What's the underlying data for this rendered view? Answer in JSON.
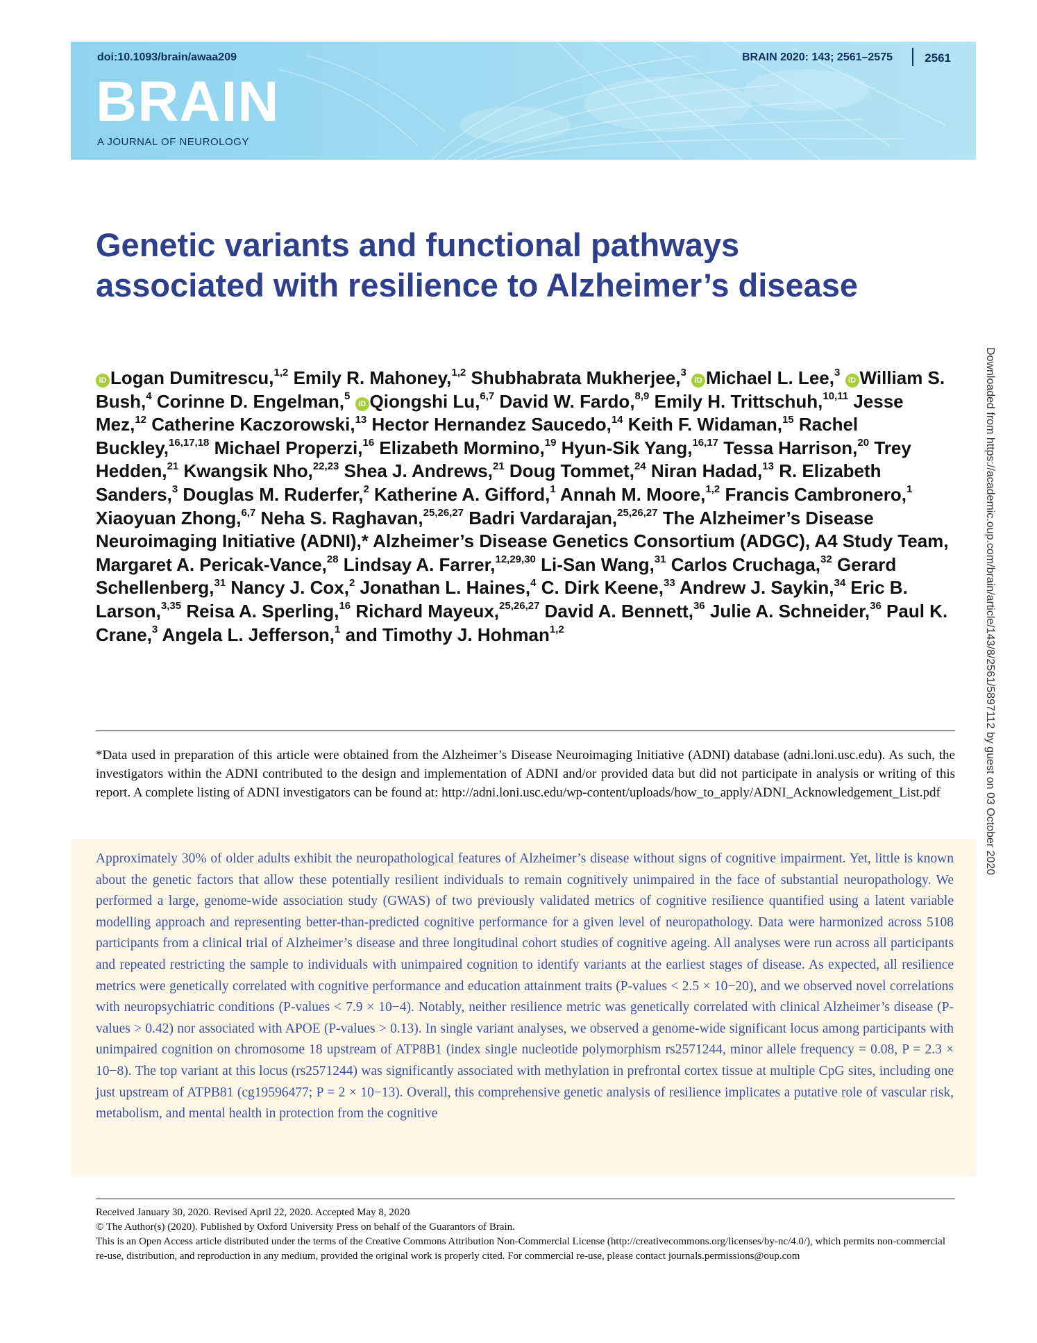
{
  "header": {
    "doi": "doi:10.1093/brain/awaa209",
    "citation": "BRAIN 2020: 143; 2561–2575",
    "page_number": "2561",
    "journal_name": "BRAIN",
    "journal_subtitle": "A JOURNAL OF NEUROLOGY",
    "banner_color": "#a2dcf2"
  },
  "title": "Genetic variants and functional pathways associated with resilience to Alzheimer’s disease",
  "authors": [
    {
      "name": "Logan Dumitrescu,",
      "aff": "1,2",
      "orcid": true
    },
    {
      "name": "Emily R. Mahoney,",
      "aff": "1,2",
      "orcid": false
    },
    {
      "name": "Shubhabrata Mukherjee,",
      "aff": "3",
      "orcid": false
    },
    {
      "name": "Michael L. Lee,",
      "aff": "3",
      "orcid": true
    },
    {
      "name": "William S. Bush,",
      "aff": "4",
      "orcid": true
    },
    {
      "name": "Corinne D. Engelman,",
      "aff": "5",
      "orcid": false
    },
    {
      "name": "Qiongshi Lu,",
      "aff": "6,7",
      "orcid": true
    },
    {
      "name": "David W. Fardo,",
      "aff": "8,9",
      "orcid": false
    },
    {
      "name": "Emily H. Trittschuh,",
      "aff": "10,11",
      "orcid": false
    },
    {
      "name": "Jesse Mez,",
      "aff": "12",
      "orcid": false
    },
    {
      "name": "Catherine Kaczorowski,",
      "aff": "13",
      "orcid": false
    },
    {
      "name": "Hector Hernandez Saucedo,",
      "aff": "14",
      "orcid": false
    },
    {
      "name": "Keith F. Widaman,",
      "aff": "15",
      "orcid": false
    },
    {
      "name": "Rachel Buckley,",
      "aff": "16,17,18",
      "orcid": false
    },
    {
      "name": "Michael Properzi,",
      "aff": "16",
      "orcid": false
    },
    {
      "name": "Elizabeth Mormino,",
      "aff": "19",
      "orcid": false
    },
    {
      "name": "Hyun-Sik Yang,",
      "aff": "16,17",
      "orcid": false
    },
    {
      "name": "Tessa Harrison,",
      "aff": "20",
      "orcid": false
    },
    {
      "name": "Trey Hedden,",
      "aff": "21",
      "orcid": false
    },
    {
      "name": "Kwangsik Nho,",
      "aff": "22,23",
      "orcid": false
    },
    {
      "name": "Shea J. Andrews,",
      "aff": "21",
      "orcid": false
    },
    {
      "name": "Doug Tommet,",
      "aff": "24",
      "orcid": false
    },
    {
      "name": "Niran Hadad,",
      "aff": "13",
      "orcid": false
    },
    {
      "name": "R. Elizabeth Sanders,",
      "aff": "3",
      "orcid": false
    },
    {
      "name": "Douglas M. Ruderfer,",
      "aff": "2",
      "orcid": false
    },
    {
      "name": "Katherine A. Gifford,",
      "aff": "1",
      "orcid": false
    },
    {
      "name": "Annah M. Moore,",
      "aff": "1,2",
      "orcid": false
    },
    {
      "name": "Francis Cambronero,",
      "aff": "1",
      "orcid": false
    },
    {
      "name": "Xiaoyuan Zhong,",
      "aff": "6,7",
      "orcid": false
    },
    {
      "name": "Neha S. Raghavan,",
      "aff": "25,26,27",
      "orcid": false
    },
    {
      "name": "Badri Vardarajan,",
      "aff": "25,26,27",
      "orcid": false
    },
    {
      "name": "The Alzheimer’s Disease Neuroimaging Initiative (ADNI),* Alzheimer’s Disease Genetics Consortium (ADGC), A4 Study Team, Margaret A. Pericak-Vance,",
      "aff": "28",
      "orcid": false
    },
    {
      "name": "Lindsay A. Farrer,",
      "aff": "12,29,30",
      "orcid": false
    },
    {
      "name": "Li-San Wang,",
      "aff": "31",
      "orcid": false
    },
    {
      "name": "Carlos Cruchaga,",
      "aff": "32",
      "orcid": false
    },
    {
      "name": "Gerard Schellenberg,",
      "aff": "31",
      "orcid": false
    },
    {
      "name": "Nancy J. Cox,",
      "aff": "2",
      "orcid": false
    },
    {
      "name": "Jonathan L. Haines,",
      "aff": "4",
      "orcid": false
    },
    {
      "name": "C. Dirk Keene,",
      "aff": "33",
      "orcid": false
    },
    {
      "name": "Andrew J. Saykin,",
      "aff": "34",
      "orcid": false
    },
    {
      "name": "Eric B. Larson,",
      "aff": "3,35",
      "orcid": false
    },
    {
      "name": "Reisa A. Sperling,",
      "aff": "16",
      "orcid": false
    },
    {
      "name": "Richard Mayeux,",
      "aff": "25,26,27",
      "orcid": false
    },
    {
      "name": "David A. Bennett,",
      "aff": "36",
      "orcid": false
    },
    {
      "name": "Julie A. Schneider,",
      "aff": "36",
      "orcid": false
    },
    {
      "name": "Paul K. Crane,",
      "aff": "3",
      "orcid": false
    },
    {
      "name": "Angela L. Jefferson,",
      "aff": "1",
      "orcid": false
    },
    {
      "name": "and Timothy J. Hohman",
      "aff": "1,2",
      "orcid": false
    }
  ],
  "orcid_badge": "iD",
  "adni_note": "*Data used in preparation of this article were obtained from the Alzheimer’s Disease Neuroimaging Initiative (ADNI) database (adni.loni.usc.edu). As such, the investigators within the ADNI contributed to the design and implementation of ADNI and/or provided data but did not participate in analysis or writing of this report. A complete listing of ADNI investigators can be found at: http://adni.loni.usc.edu/wp-content/uploads/how_to_apply/ADNI_Acknowledgement_List.pdf",
  "abstract": "Approximately 30% of older adults exhibit the neuropathological features of Alzheimer’s disease without signs of cognitive impairment. Yet, little is known about the genetic factors that allow these potentially resilient individuals to remain cognitively unimpaired in the face of substantial neuropathology. We performed a large, genome-wide association study (GWAS) of two previously validated metrics of cognitive resilience quantified using a latent variable modelling approach and representing better-than-predicted cognitive performance for a given level of neuropathology. Data were harmonized across 5108 participants from a clinical trial of Alzheimer’s disease and three longitudinal cohort studies of cognitive ageing. All analyses were run across all participants and repeated restricting the sample to individuals with unimpaired cognition to identify variants at the earliest stages of disease. As expected, all resilience metrics were genetically correlated with cognitive performance and education attainment traits (P-values < 2.5 × 10−20), and we observed novel correlations with neuropsychiatric conditions (P-values < 7.9 × 10−4). Notably, neither resilience metric was genetically correlated with clinical Alzheimer’s disease (P-values > 0.42) nor associated with APOE (P-values > 0.13). In single variant analyses, we observed a genome-wide significant locus among participants with unimpaired cognition on chromosome 18 upstream of ATP8B1 (index single nucleotide polymorphism rs2571244, minor allele frequency = 0.08, P = 2.3 × 10−8). The top variant at this locus (rs2571244) was significantly associated with methylation in prefrontal cortex tissue at multiple CpG sites, including one just upstream of ATPB81 (cg19596477; P = 2 × 10−13). Overall, this comprehensive genetic analysis of resilience implicates a putative role of vascular risk, metabolism, and mental health in protection from the cognitive",
  "footer": {
    "received": "Received January 30, 2020. Revised April 22, 2020. Accepted May 8, 2020",
    "copyright": "© The Author(s) (2020). Published by Oxford University Press on behalf of the Guarantors of Brain.",
    "license": "This is an Open Access article distributed under the terms of the Creative Commons Attribution Non-Commercial License (http://creativecommons.org/licenses/by-nc/4.0/), which permits non-commercial re-use, distribution, and reproduction in any medium, provided the original work is properly cited. For commercial re-use, please contact journals.permissions@oup.com"
  },
  "side_note": "Downloaded from https://academic.oup.com/brain/article/143/8/2561/5897112 by guest on 03 October 2020",
  "colors": {
    "title": "#2e3f8c",
    "abstract_text": "#3b4fa3",
    "abstract_bg": "#fdf8e6",
    "orcid": "#a6ce39"
  }
}
